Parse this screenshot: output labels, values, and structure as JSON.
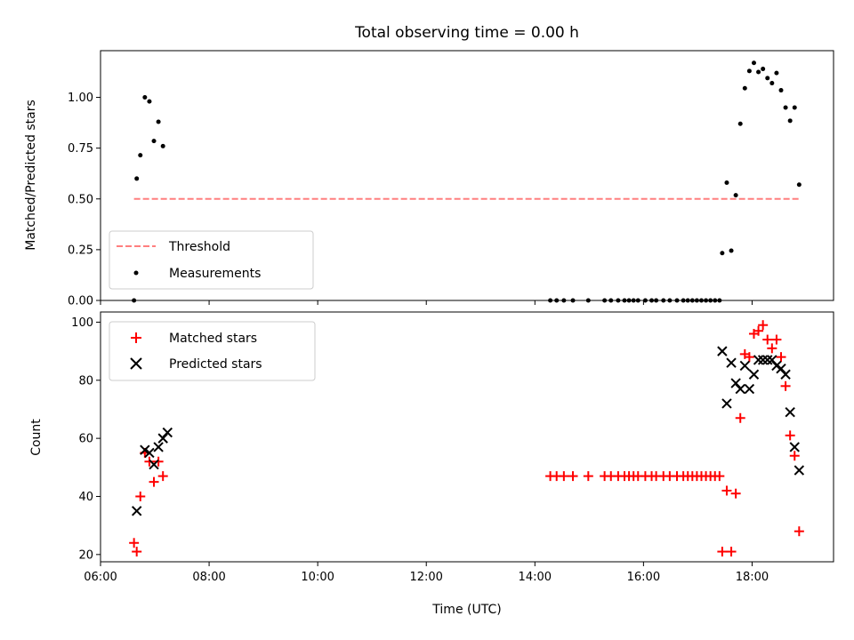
{
  "figure_title": "Total observing time = 0.00 h",
  "xlabel": "Time (UTC)",
  "chart_data": [
    {
      "type": "scatter",
      "panel": "top",
      "ylabel": "Matched/Predicted stars",
      "xlim": [
        "06:00",
        "19:30"
      ],
      "ylim": [
        0,
        1.23
      ],
      "yticks": [
        "0.00",
        "0.25",
        "0.50",
        "0.75",
        "1.00"
      ],
      "ytick_values": [
        0,
        0.25,
        0.5,
        0.75,
        1.0
      ],
      "xticks": [
        6,
        8,
        10,
        12,
        14,
        16,
        18
      ],
      "grid": false,
      "legend": "lower-left",
      "threshold": {
        "name": "Threshold",
        "value": 0.5,
        "x_range": [
          "06:37",
          "18:52"
        ],
        "color": "#ff7f7f"
      },
      "series": [
        {
          "name": "Measurements",
          "color": "#000000",
          "marker": "dot",
          "points": [
            [
              "06:37",
              0.0
            ],
            [
              "06:40",
              0.6
            ],
            [
              "06:44",
              0.715
            ],
            [
              "06:49",
              1.0
            ],
            [
              "06:54",
              0.98
            ],
            [
              "06:59",
              0.785
            ],
            [
              "07:04",
              0.88
            ],
            [
              "07:09",
              0.76
            ],
            [
              "14:17",
              0.0
            ],
            [
              "14:24",
              0.0
            ],
            [
              "14:32",
              0.0
            ],
            [
              "14:42",
              0.0
            ],
            [
              "14:59",
              0.0
            ],
            [
              "15:17",
              0.0
            ],
            [
              "15:24",
              0.0
            ],
            [
              "15:32",
              0.0
            ],
            [
              "15:39",
              0.0
            ],
            [
              "15:44",
              0.0
            ],
            [
              "15:49",
              0.0
            ],
            [
              "15:54",
              0.0
            ],
            [
              "16:02",
              0.0
            ],
            [
              "16:09",
              0.0
            ],
            [
              "16:14",
              0.0
            ],
            [
              "16:22",
              0.0
            ],
            [
              "16:29",
              0.0
            ],
            [
              "16:37",
              0.0
            ],
            [
              "16:44",
              0.0
            ],
            [
              "16:49",
              0.0
            ],
            [
              "16:54",
              0.0
            ],
            [
              "16:59",
              0.0
            ],
            [
              "17:04",
              0.0
            ],
            [
              "17:09",
              0.0
            ],
            [
              "17:14",
              0.0
            ],
            [
              "17:19",
              0.0
            ],
            [
              "17:24",
              0.0
            ],
            [
              "17:27",
              0.233
            ],
            [
              "17:32",
              0.58
            ],
            [
              "17:37",
              0.245
            ],
            [
              "17:42",
              0.518
            ],
            [
              "17:47",
              0.87
            ],
            [
              "17:52",
              1.045
            ],
            [
              "17:57",
              1.13
            ],
            [
              "18:02",
              1.17
            ],
            [
              "18:07",
              1.125
            ],
            [
              "18:12",
              1.14
            ],
            [
              "18:17",
              1.095
            ],
            [
              "18:22",
              1.07
            ],
            [
              "18:27",
              1.12
            ],
            [
              "18:32",
              1.035
            ],
            [
              "18:37",
              0.95
            ],
            [
              "18:42",
              0.885
            ],
            [
              "18:47",
              0.95
            ],
            [
              "18:52",
              0.57
            ]
          ]
        }
      ]
    },
    {
      "type": "scatter",
      "panel": "bottom",
      "ylabel": "Count",
      "xlim": [
        "06:00",
        "19:30"
      ],
      "ylim": [
        17.5,
        103.5
      ],
      "yticks": [
        "20",
        "40",
        "60",
        "80",
        "100"
      ],
      "ytick_values": [
        20,
        40,
        60,
        80,
        100
      ],
      "xticks": [
        "06:00",
        "08:00",
        "10:00",
        "12:00",
        "14:00",
        "16:00",
        "18:00"
      ],
      "xtick_values": [
        6,
        8,
        10,
        12,
        14,
        16,
        18
      ],
      "grid": false,
      "legend": "upper-left",
      "series": [
        {
          "name": "Matched stars",
          "color": "#ff0000",
          "marker": "plus",
          "points": [
            [
              "06:37",
              24
            ],
            [
              "06:40",
              21
            ],
            [
              "06:44",
              40
            ],
            [
              "06:49",
              55
            ],
            [
              "06:54",
              52
            ],
            [
              "06:59",
              45
            ],
            [
              "07:04",
              52
            ],
            [
              "07:09",
              47
            ],
            [
              "14:17",
              47
            ],
            [
              "14:24",
              47
            ],
            [
              "14:32",
              47
            ],
            [
              "14:42",
              47
            ],
            [
              "14:59",
              47
            ],
            [
              "15:17",
              47
            ],
            [
              "15:24",
              47
            ],
            [
              "15:32",
              47
            ],
            [
              "15:39",
              47
            ],
            [
              "15:44",
              47
            ],
            [
              "15:49",
              47
            ],
            [
              "15:54",
              47
            ],
            [
              "16:02",
              47
            ],
            [
              "16:09",
              47
            ],
            [
              "16:14",
              47
            ],
            [
              "16:22",
              47
            ],
            [
              "16:29",
              47
            ],
            [
              "16:37",
              47
            ],
            [
              "16:44",
              47
            ],
            [
              "16:49",
              47
            ],
            [
              "16:54",
              47
            ],
            [
              "16:59",
              47
            ],
            [
              "17:04",
              47
            ],
            [
              "17:09",
              47
            ],
            [
              "17:14",
              47
            ],
            [
              "17:19",
              47
            ],
            [
              "17:24",
              47
            ],
            [
              "17:27",
              21
            ],
            [
              "17:32",
              42
            ],
            [
              "17:37",
              21
            ],
            [
              "17:42",
              41
            ],
            [
              "17:47",
              67
            ],
            [
              "17:52",
              89
            ],
            [
              "17:57",
              88
            ],
            [
              "18:02",
              96
            ],
            [
              "18:07",
              97
            ],
            [
              "18:12",
              99
            ],
            [
              "18:17",
              94
            ],
            [
              "18:22",
              91
            ],
            [
              "18:27",
              94
            ],
            [
              "18:32",
              88
            ],
            [
              "18:37",
              78
            ],
            [
              "18:42",
              61
            ],
            [
              "18:47",
              54
            ],
            [
              "18:52",
              28
            ]
          ]
        },
        {
          "name": "Predicted stars",
          "color": "#000000",
          "marker": "x",
          "points": [
            [
              "06:40",
              35
            ],
            [
              "06:49",
              56
            ],
            [
              "06:54",
              55
            ],
            [
              "06:59",
              51
            ],
            [
              "07:04",
              57
            ],
            [
              "07:09",
              60
            ],
            [
              "07:14",
              62
            ],
            [
              "17:27",
              90
            ],
            [
              "17:32",
              72
            ],
            [
              "17:37",
              86
            ],
            [
              "17:42",
              79
            ],
            [
              "17:47",
              77
            ],
            [
              "17:52",
              85
            ],
            [
              "17:57",
              77
            ],
            [
              "18:02",
              82
            ],
            [
              "18:07",
              87
            ],
            [
              "18:12",
              87
            ],
            [
              "18:17",
              87
            ],
            [
              "18:22",
              87
            ],
            [
              "18:27",
              85
            ],
            [
              "18:32",
              84
            ],
            [
              "18:37",
              82
            ],
            [
              "18:42",
              69
            ],
            [
              "18:47",
              57
            ],
            [
              "18:52",
              49
            ]
          ]
        }
      ]
    }
  ]
}
